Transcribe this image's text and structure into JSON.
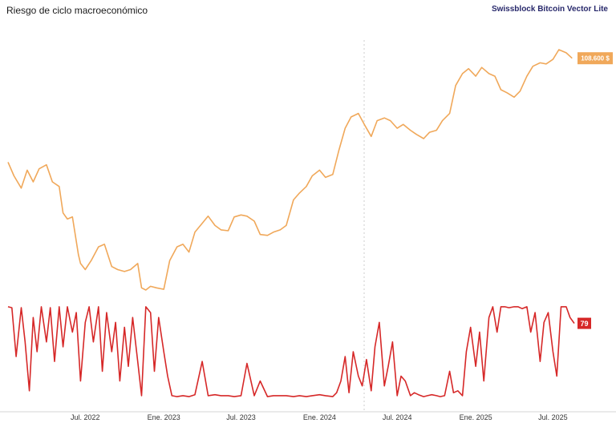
{
  "header": {
    "title": "Riesgo de ciclo macroeconómico",
    "source": "Swissblock Bitcoin Vector Lite"
  },
  "colors": {
    "price": "#f0a85a",
    "risk": "#d62828",
    "price_tag_bg": "#f0a85a",
    "risk_tag_bg": "#d62828",
    "axis_text": "#333333",
    "divider": "#cccccc"
  },
  "chart_data": [
    {
      "type": "line",
      "series": [
        {
          "x": [
            "2022-01-01",
            "2022-01-15",
            "2022-02-01",
            "2022-02-15",
            "2022-03-01",
            "2022-03-15",
            "2022-04-01",
            "2022-04-15",
            "2022-05-01",
            "2022-05-10",
            "2022-05-20",
            "2022-06-01",
            "2022-06-15",
            "2022-06-20",
            "2022-07-01",
            "2022-07-15",
            "2022-08-01",
            "2022-08-15",
            "2022-09-01",
            "2022-09-15",
            "2022-10-01",
            "2022-10-15",
            "2022-11-01",
            "2022-11-10",
            "2022-11-20",
            "2022-12-01",
            "2022-12-15",
            "2023-01-01",
            "2023-01-15",
            "2023-02-01",
            "2023-02-15",
            "2023-03-01",
            "2023-03-15",
            "2023-04-01",
            "2023-04-15",
            "2023-05-01",
            "2023-05-15",
            "2023-06-01",
            "2023-06-15",
            "2023-07-01",
            "2023-07-15",
            "2023-08-01",
            "2023-08-15",
            "2023-09-01",
            "2023-09-15",
            "2023-10-01",
            "2023-10-15",
            "2023-11-01",
            "2023-11-15",
            "2023-12-01",
            "2023-12-15",
            "2024-01-01",
            "2024-01-15",
            "2024-02-01",
            "2024-02-15",
            "2024-03-01",
            "2024-03-15",
            "2024-04-01",
            "2024-04-15",
            "2024-05-01",
            "2024-05-15",
            "2024-06-01",
            "2024-06-15",
            "2024-07-01",
            "2024-07-15",
            "2024-08-01",
            "2024-08-15",
            "2024-09-01",
            "2024-09-15",
            "2024-10-01",
            "2024-10-15",
            "2024-11-01",
            "2024-11-15",
            "2024-12-01",
            "2024-12-15",
            "2025-01-01",
            "2025-01-15",
            "2025-02-01",
            "2025-02-15",
            "2025-03-01",
            "2025-03-15",
            "2025-04-01",
            "2025-04-15",
            "2025-05-01",
            "2025-05-15",
            "2025-06-01",
            "2025-06-15",
            "2025-07-01",
            "2025-07-15",
            "2025-08-01",
            "2025-08-15"
          ],
          "values": [
            47000,
            42000,
            38000,
            44000,
            40000,
            44500,
            46000,
            40000,
            38500,
            31000,
            29500,
            30000,
            22000,
            20500,
            19500,
            21000,
            23500,
            24000,
            20000,
            19500,
            19200,
            19500,
            20500,
            16800,
            16500,
            17000,
            16800,
            16600,
            21000,
            23500,
            24000,
            22500,
            26500,
            28500,
            30200,
            28000,
            27000,
            26800,
            30000,
            30500,
            30200,
            29000,
            26000,
            25800,
            26500,
            27000,
            28000,
            34500,
            36500,
            38500,
            42000,
            44000,
            41500,
            42500,
            51500,
            62000,
            68000,
            70000,
            64000,
            58000,
            66000,
            67500,
            66000,
            62000,
            64000,
            61000,
            59000,
            57000,
            60000,
            61000,
            66000,
            70000,
            88000,
            97000,
            101000,
            95000,
            102000,
            97000,
            95000,
            85000,
            83000,
            80000,
            84000,
            95000,
            103000,
            106000,
            105000,
            109000,
            118000,
            115000,
            110000
          ]
        }
      ],
      "tag_label": "108.600 $"
    },
    {
      "type": "line",
      "x_ticks": [
        "Jul. 2022",
        "Ene. 2023",
        "Jul. 2023",
        "Ene. 2024",
        "Jul. 2024",
        "Ene. 2025",
        "Jul. 2025"
      ],
      "series": [
        {
          "x": [
            "2022-01-01",
            "2022-01-10",
            "2022-01-20",
            "2022-02-01",
            "2022-02-10",
            "2022-02-20",
            "2022-03-01",
            "2022-03-10",
            "2022-03-20",
            "2022-04-01",
            "2022-04-10",
            "2022-04-20",
            "2022-05-01",
            "2022-05-10",
            "2022-05-20",
            "2022-06-01",
            "2022-06-10",
            "2022-06-20",
            "2022-07-01",
            "2022-07-10",
            "2022-07-20",
            "2022-08-01",
            "2022-08-10",
            "2022-08-20",
            "2022-09-01",
            "2022-09-10",
            "2022-09-20",
            "2022-10-01",
            "2022-10-10",
            "2022-10-20",
            "2022-11-01",
            "2022-11-10",
            "2022-11-20",
            "2022-12-01",
            "2022-12-10",
            "2022-12-20",
            "2023-01-01",
            "2023-01-10",
            "2023-01-20",
            "2023-02-01",
            "2023-02-15",
            "2023-03-01",
            "2023-03-15",
            "2023-04-01",
            "2023-04-15",
            "2023-05-01",
            "2023-05-15",
            "2023-06-01",
            "2023-06-15",
            "2023-07-01",
            "2023-07-15",
            "2023-08-01",
            "2023-08-15",
            "2023-09-01",
            "2023-09-15",
            "2023-10-01",
            "2023-10-15",
            "2023-11-01",
            "2023-11-15",
            "2023-12-01",
            "2023-12-15",
            "2024-01-01",
            "2024-01-15",
            "2024-02-01",
            "2024-02-10",
            "2024-02-20",
            "2024-03-01",
            "2024-03-10",
            "2024-03-20",
            "2024-04-01",
            "2024-04-10",
            "2024-04-20",
            "2024-05-01",
            "2024-05-10",
            "2024-05-20",
            "2024-06-01",
            "2024-06-10",
            "2024-06-20",
            "2024-07-01",
            "2024-07-10",
            "2024-07-20",
            "2024-08-01",
            "2024-08-10",
            "2024-08-20",
            "2024-09-01",
            "2024-09-10",
            "2024-09-20",
            "2024-10-01",
            "2024-10-10",
            "2024-10-20",
            "2024-11-01",
            "2024-11-10",
            "2024-11-20",
            "2024-12-01",
            "2024-12-10",
            "2024-12-20",
            "2025-01-01",
            "2025-01-10",
            "2025-01-20",
            "2025-02-01",
            "2025-02-10",
            "2025-02-20",
            "2025-03-01",
            "2025-03-10",
            "2025-03-20",
            "2025-04-01",
            "2025-04-10",
            "2025-04-20",
            "2025-05-01",
            "2025-05-10",
            "2025-05-20",
            "2025-06-01",
            "2025-06-10",
            "2025-06-20",
            "2025-07-01",
            "2025-07-10",
            "2025-07-20",
            "2025-08-01",
            "2025-08-10",
            "2025-08-20"
          ],
          "values": [
            96,
            95,
            45,
            95,
            60,
            10,
            85,
            50,
            96,
            60,
            95,
            40,
            96,
            55,
            96,
            70,
            90,
            20,
            80,
            96,
            60,
            96,
            30,
            90,
            50,
            80,
            20,
            75,
            35,
            85,
            40,
            5,
            96,
            90,
            30,
            85,
            50,
            25,
            5,
            4,
            5,
            4,
            6,
            40,
            5,
            6,
            5,
            5,
            4,
            5,
            38,
            5,
            20,
            4,
            5,
            5,
            5,
            4,
            5,
            4,
            5,
            6,
            5,
            4,
            8,
            20,
            45,
            8,
            50,
            25,
            15,
            42,
            10,
            55,
            80,
            15,
            35,
            60,
            5,
            25,
            20,
            5,
            8,
            6,
            4,
            5,
            6,
            5,
            4,
            5,
            30,
            8,
            10,
            5,
            50,
            75,
            35,
            70,
            20,
            85,
            96,
            70,
            96,
            96,
            95,
            96,
            96,
            94,
            96,
            70,
            90,
            40,
            80,
            90,
            50,
            25,
            96,
            96,
            85,
            79
          ]
        }
      ],
      "tag_label": "79",
      "ylim": [
        0,
        100
      ]
    }
  ]
}
